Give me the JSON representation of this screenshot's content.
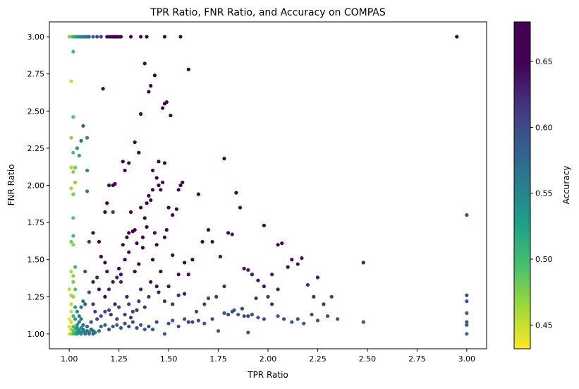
{
  "chart_data": {
    "type": "scatter",
    "title": "TPR Ratio, FNR Ratio, and Accuracy on COMPAS",
    "xlabel": "TPR Ratio",
    "ylabel": "FNR Ratio",
    "xlim": [
      0.9,
      3.1
    ],
    "ylim": [
      0.9,
      3.1
    ],
    "xticks": [
      1.0,
      1.25,
      1.5,
      1.75,
      2.0,
      2.25,
      2.5,
      2.75,
      3.0
    ],
    "xtick_labels": [
      "1.00",
      "1.25",
      "1.50",
      "1.75",
      "2.00",
      "2.25",
      "2.50",
      "2.75",
      "3.00"
    ],
    "yticks": [
      1.0,
      1.25,
      1.5,
      1.75,
      2.0,
      2.25,
      2.5,
      2.75,
      3.0
    ],
    "ytick_labels": [
      "1.00",
      "1.25",
      "1.50",
      "1.75",
      "2.00",
      "2.25",
      "2.50",
      "2.75",
      "3.00"
    ],
    "grid": false,
    "colormap": "viridis_r",
    "colorbar": {
      "label": "Accuracy",
      "range": [
        0.432,
        0.68
      ],
      "ticks": [
        0.45,
        0.5,
        0.55,
        0.6,
        0.65
      ],
      "tick_labels": [
        "0.45",
        "0.50",
        "0.55",
        "0.60",
        "0.65"
      ]
    },
    "points": [
      [
        1.0,
        3.0,
        0.47
      ],
      [
        1.01,
        3.0,
        0.48
      ],
      [
        1.02,
        3.0,
        0.5
      ],
      [
        1.03,
        3.0,
        0.52
      ],
      [
        1.04,
        3.0,
        0.53
      ],
      [
        1.05,
        3.0,
        0.54
      ],
      [
        1.06,
        3.0,
        0.55
      ],
      [
        1.07,
        3.0,
        0.55
      ],
      [
        1.08,
        3.0,
        0.56
      ],
      [
        1.09,
        3.0,
        0.57
      ],
      [
        1.1,
        3.0,
        0.58
      ],
      [
        1.12,
        3.0,
        0.59
      ],
      [
        1.14,
        3.0,
        0.6
      ],
      [
        1.16,
        3.0,
        0.61
      ],
      [
        1.19,
        3.0,
        0.64
      ],
      [
        1.2,
        3.0,
        0.64
      ],
      [
        1.21,
        3.0,
        0.65
      ],
      [
        1.22,
        3.0,
        0.65
      ],
      [
        1.23,
        3.0,
        0.66
      ],
      [
        1.24,
        3.0,
        0.66
      ],
      [
        1.25,
        3.0,
        0.67
      ],
      [
        1.26,
        3.0,
        0.67
      ],
      [
        1.31,
        3.0,
        0.67
      ],
      [
        1.36,
        3.0,
        0.67
      ],
      [
        1.39,
        3.0,
        0.68
      ],
      [
        1.48,
        3.0,
        0.67
      ],
      [
        1.56,
        3.0,
        0.68
      ],
      [
        2.95,
        3.0,
        0.68
      ],
      [
        1.02,
        2.9,
        0.5
      ],
      [
        1.01,
        2.7,
        0.45
      ],
      [
        1.02,
        2.46,
        0.49
      ],
      [
        1.01,
        2.32,
        0.47
      ],
      [
        1.02,
        2.22,
        0.49
      ],
      [
        1.05,
        2.2,
        0.52
      ],
      [
        1.04,
        2.25,
        0.53
      ],
      [
        1.06,
        2.3,
        0.57
      ],
      [
        1.07,
        2.4,
        0.58
      ],
      [
        1.09,
        2.32,
        0.54
      ],
      [
        1.09,
        2.1,
        0.54
      ],
      [
        1.01,
        2.12,
        0.46
      ],
      [
        1.02,
        2.09,
        0.47
      ],
      [
        1.03,
        2.12,
        0.48
      ],
      [
        1.03,
        2.02,
        0.47
      ],
      [
        1.02,
        1.94,
        0.48
      ],
      [
        1.01,
        1.98,
        0.46
      ],
      [
        1.09,
        1.96,
        0.56
      ],
      [
        1.02,
        1.78,
        0.49
      ],
      [
        1.02,
        1.66,
        0.5
      ],
      [
        1.01,
        1.62,
        0.48
      ],
      [
        1.02,
        1.6,
        0.47
      ],
      [
        1.01,
        1.42,
        0.46
      ],
      [
        1.02,
        1.39,
        0.47
      ],
      [
        1.03,
        1.45,
        0.5
      ],
      [
        1.02,
        1.35,
        0.48
      ],
      [
        1.03,
        1.3,
        0.49
      ],
      [
        1.02,
        1.25,
        0.47
      ],
      [
        1.01,
        1.2,
        0.45
      ],
      [
        1.01,
        1.15,
        0.45
      ],
      [
        1.0,
        1.1,
        0.44
      ],
      [
        1.01,
        1.08,
        0.45
      ],
      [
        1.0,
        1.05,
        0.44
      ],
      [
        1.01,
        1.03,
        0.46
      ],
      [
        1.02,
        1.02,
        0.48
      ],
      [
        1.03,
        1.01,
        0.5
      ],
      [
        1.04,
        1.02,
        0.52
      ],
      [
        1.05,
        1.01,
        0.54
      ],
      [
        1.06,
        1.01,
        0.55
      ],
      [
        1.07,
        1.02,
        0.56
      ],
      [
        1.08,
        1.01,
        0.57
      ],
      [
        1.1,
        1.01,
        0.57
      ],
      [
        1.12,
        1.02,
        0.58
      ],
      [
        1.13,
        1.01,
        0.56
      ],
      [
        1.15,
        1.02,
        0.57
      ],
      [
        1.16,
        1.05,
        0.58
      ],
      [
        1.18,
        1.06,
        0.58
      ],
      [
        1.2,
        1.03,
        0.59
      ],
      [
        1.22,
        1.05,
        0.59
      ],
      [
        1.24,
        1.06,
        0.58
      ],
      [
        1.26,
        1.04,
        0.59
      ],
      [
        1.28,
        1.07,
        0.6
      ],
      [
        1.3,
        1.05,
        0.6
      ],
      [
        1.32,
        1.08,
        0.59
      ],
      [
        1.34,
        1.04,
        0.6
      ],
      [
        1.36,
        1.06,
        0.59
      ],
      [
        1.38,
        1.03,
        0.58
      ],
      [
        1.4,
        1.05,
        0.6
      ],
      [
        1.42,
        1.03,
        0.59
      ],
      [
        1.44,
        1.08,
        0.6
      ],
      [
        1.48,
        1.0,
        0.59
      ],
      [
        1.5,
        1.07,
        0.6
      ],
      [
        1.52,
        1.09,
        0.59
      ],
      [
        1.55,
        1.05,
        0.6
      ],
      [
        1.58,
        1.1,
        0.6
      ],
      [
        1.62,
        1.08,
        0.6
      ],
      [
        1.65,
        1.09,
        0.6
      ],
      [
        1.68,
        1.07,
        0.59
      ],
      [
        1.72,
        1.1,
        0.6
      ],
      [
        1.75,
        1.02,
        0.59
      ],
      [
        1.78,
        1.14,
        0.59
      ],
      [
        1.8,
        1.13,
        0.6
      ],
      [
        1.83,
        1.16,
        0.59
      ],
      [
        1.85,
        1.13,
        0.58
      ],
      [
        1.88,
        1.12,
        0.6
      ],
      [
        1.9,
        1.01,
        0.59
      ],
      [
        1.92,
        1.13,
        0.6
      ],
      [
        1.95,
        1.11,
        0.59
      ],
      [
        1.98,
        1.1,
        0.6
      ],
      [
        2.05,
        1.12,
        0.59
      ],
      [
        2.08,
        1.1,
        0.6
      ],
      [
        2.12,
        1.08,
        0.59
      ],
      [
        2.15,
        1.1,
        0.6
      ],
      [
        2.18,
        1.07,
        0.59
      ],
      [
        2.22,
        1.13,
        0.6
      ],
      [
        2.25,
        1.09,
        0.59
      ],
      [
        2.3,
        1.12,
        0.6
      ],
      [
        2.35,
        1.1,
        0.59
      ],
      [
        2.48,
        1.08,
        0.59
      ],
      [
        3.0,
        1.26,
        0.6
      ],
      [
        3.0,
        1.22,
        0.59
      ],
      [
        3.0,
        1.14,
        0.58
      ],
      [
        3.0,
        1.08,
        0.59
      ],
      [
        3.0,
        1.06,
        0.59
      ],
      [
        3.0,
        1.0,
        0.57
      ],
      [
        3.0,
        1.8,
        0.6
      ],
      [
        2.48,
        1.48,
        0.63
      ],
      [
        1.05,
        1.12,
        0.56
      ],
      [
        1.06,
        1.18,
        0.57
      ],
      [
        1.07,
        1.22,
        0.56
      ],
      [
        1.08,
        1.2,
        0.58
      ],
      [
        1.04,
        1.15,
        0.55
      ],
      [
        1.05,
        1.08,
        0.55
      ],
      [
        1.06,
        1.1,
        0.57
      ],
      [
        1.07,
        1.06,
        0.57
      ],
      [
        1.03,
        1.1,
        0.53
      ],
      [
        1.04,
        1.06,
        0.54
      ],
      [
        1.08,
        1.42,
        0.59
      ],
      [
        1.1,
        1.28,
        0.6
      ],
      [
        1.12,
        1.35,
        0.64
      ],
      [
        1.15,
        1.3,
        0.64
      ],
      [
        1.18,
        1.25,
        0.65
      ],
      [
        1.1,
        1.62,
        0.62
      ],
      [
        1.17,
        2.65,
        0.67
      ],
      [
        1.18,
        1.82,
        0.66
      ],
      [
        1.19,
        1.88,
        0.67
      ],
      [
        1.2,
        2.0,
        0.64
      ],
      [
        1.22,
        2.0,
        0.65
      ],
      [
        1.22,
        1.82,
        0.62
      ],
      [
        1.23,
        2.01,
        0.66
      ],
      [
        1.27,
        2.16,
        0.67
      ],
      [
        1.29,
        1.65,
        0.67
      ],
      [
        1.3,
        1.68,
        0.66
      ],
      [
        1.32,
        1.69,
        0.67
      ],
      [
        1.33,
        2.29,
        0.66
      ],
      [
        1.35,
        2.22,
        0.66
      ],
      [
        1.36,
        2.48,
        0.65
      ],
      [
        1.38,
        2.82,
        0.67
      ],
      [
        1.4,
        2.63,
        0.67
      ],
      [
        1.41,
        2.67,
        0.67
      ],
      [
        1.43,
        2.74,
        0.66
      ],
      [
        1.45,
        2.16,
        0.66
      ],
      [
        1.47,
        2.52,
        0.67
      ],
      [
        1.48,
        2.55,
        0.68
      ],
      [
        1.49,
        2.56,
        0.67
      ],
      [
        1.51,
        2.47,
        0.68
      ],
      [
        1.48,
        2.15,
        0.67
      ],
      [
        1.44,
        2.05,
        0.68
      ],
      [
        1.42,
        1.97,
        0.67
      ],
      [
        1.4,
        1.93,
        0.66
      ],
      [
        1.38,
        1.78,
        0.67
      ],
      [
        1.36,
        1.85,
        0.66
      ],
      [
        1.33,
        1.7,
        0.65
      ],
      [
        1.3,
        1.55,
        0.66
      ],
      [
        1.28,
        1.5,
        0.65
      ],
      [
        1.26,
        1.4,
        0.64
      ],
      [
        1.24,
        1.38,
        0.63
      ],
      [
        1.22,
        1.35,
        0.64
      ],
      [
        1.2,
        1.3,
        0.62
      ],
      [
        1.18,
        1.48,
        0.65
      ],
      [
        1.16,
        1.52,
        0.66
      ],
      [
        1.14,
        1.38,
        0.63
      ],
      [
        1.12,
        1.2,
        0.62
      ],
      [
        1.13,
        1.15,
        0.61
      ],
      [
        1.16,
        1.12,
        0.6
      ],
      [
        1.18,
        1.15,
        0.61
      ],
      [
        1.2,
        1.16,
        0.6
      ],
      [
        1.25,
        1.18,
        0.61
      ],
      [
        1.3,
        1.2,
        0.61
      ],
      [
        1.35,
        1.22,
        0.62
      ],
      [
        1.4,
        1.25,
        0.62
      ],
      [
        1.45,
        1.28,
        0.63
      ],
      [
        1.5,
        1.32,
        0.64
      ],
      [
        1.55,
        1.26,
        0.62
      ],
      [
        1.6,
        1.4,
        0.64
      ],
      [
        1.62,
        1.5,
        0.66
      ],
      [
        1.65,
        1.94,
        0.67
      ],
      [
        1.67,
        1.62,
        0.65
      ],
      [
        1.7,
        1.7,
        0.65
      ],
      [
        1.72,
        1.62,
        0.64
      ],
      [
        1.76,
        1.52,
        0.64
      ],
      [
        1.78,
        2.18,
        0.67
      ],
      [
        1.8,
        1.68,
        0.65
      ],
      [
        1.82,
        1.67,
        0.64
      ],
      [
        1.84,
        1.95,
        0.66
      ],
      [
        1.86,
        1.85,
        0.66
      ],
      [
        1.88,
        1.44,
        0.64
      ],
      [
        1.9,
        1.43,
        0.63
      ],
      [
        1.92,
        1.4,
        0.63
      ],
      [
        1.95,
        1.36,
        0.64
      ],
      [
        1.98,
        1.73,
        0.66
      ],
      [
        2.0,
        1.25,
        0.62
      ],
      [
        2.02,
        1.4,
        0.63
      ],
      [
        2.05,
        1.6,
        0.65
      ],
      [
        2.07,
        1.61,
        0.65
      ],
      [
        2.1,
        1.45,
        0.64
      ],
      [
        2.12,
        1.5,
        0.64
      ],
      [
        2.15,
        1.47,
        0.64
      ],
      [
        2.17,
        1.51,
        0.64
      ],
      [
        2.2,
        1.33,
        0.62
      ],
      [
        2.23,
        1.25,
        0.62
      ],
      [
        2.25,
        1.38,
        0.63
      ],
      [
        2.28,
        1.2,
        0.62
      ],
      [
        2.32,
        1.25,
        0.61
      ],
      [
        2.05,
        1.3,
        0.63
      ],
      [
        2.02,
        1.2,
        0.62
      ],
      [
        1.98,
        1.32,
        0.64
      ],
      [
        1.94,
        1.24,
        0.62
      ],
      [
        1.9,
        1.12,
        0.61
      ],
      [
        1.87,
        1.17,
        0.61
      ],
      [
        1.82,
        1.15,
        0.6
      ],
      [
        1.78,
        1.32,
        0.62
      ],
      [
        1.74,
        1.25,
        0.62
      ],
      [
        1.7,
        1.24,
        0.61
      ],
      [
        1.68,
        1.2,
        0.61
      ],
      [
        1.64,
        1.15,
        0.61
      ],
      [
        1.6,
        1.08,
        0.61
      ],
      [
        1.58,
        1.27,
        0.63
      ],
      [
        1.55,
        1.97,
        0.66
      ],
      [
        1.56,
        2.0,
        0.67
      ],
      [
        1.57,
        2.02,
        0.67
      ],
      [
        1.54,
        1.84,
        0.66
      ],
      [
        1.52,
        1.8,
        0.67
      ],
      [
        1.5,
        1.85,
        0.66
      ],
      [
        1.49,
        1.7,
        0.66
      ],
      [
        1.47,
        2.02,
        0.67
      ],
      [
        1.46,
        1.97,
        0.66
      ],
      [
        1.44,
        1.6,
        0.65
      ],
      [
        1.43,
        1.68,
        0.66
      ],
      [
        1.42,
        1.5,
        0.65
      ],
      [
        1.41,
        1.35,
        0.64
      ],
      [
        1.39,
        1.72,
        0.65
      ],
      [
        1.37,
        1.58,
        0.66
      ],
      [
        1.35,
        1.47,
        0.66
      ],
      [
        1.33,
        1.42,
        0.66
      ],
      [
        1.32,
        1.15,
        0.61
      ],
      [
        1.31,
        1.11,
        0.62
      ],
      [
        1.29,
        1.25,
        0.63
      ],
      [
        1.27,
        1.6,
        0.67
      ],
      [
        1.25,
        1.44,
        0.66
      ],
      [
        1.23,
        1.2,
        0.63
      ],
      [
        1.21,
        1.13,
        0.62
      ],
      [
        1.19,
        1.42,
        0.64
      ],
      [
        1.15,
        1.62,
        0.66
      ],
      [
        1.12,
        1.68,
        0.65
      ],
      [
        1.45,
        2.0,
        0.68
      ],
      [
        1.42,
        2.1,
        0.67
      ],
      [
        1.41,
        1.9,
        0.67
      ],
      [
        1.39,
        1.88,
        0.66
      ],
      [
        1.37,
        1.65,
        0.65
      ],
      [
        1.34,
        1.61,
        0.66
      ],
      [
        1.3,
        2.15,
        0.67
      ],
      [
        1.28,
        2.1,
        0.67
      ],
      [
        1.31,
        1.82,
        0.65
      ],
      [
        1.26,
        1.35,
        0.63
      ],
      [
        1.48,
        1.65,
        0.66
      ],
      [
        1.52,
        1.53,
        0.65
      ],
      [
        1.55,
        1.4,
        0.64
      ],
      [
        1.58,
        1.48,
        0.65
      ],
      [
        1.6,
        2.78,
        0.67
      ],
      [
        1.46,
        1.42,
        0.65
      ],
      [
        1.44,
        1.32,
        0.64
      ],
      [
        1.48,
        1.22,
        0.62
      ],
      [
        1.52,
        1.2,
        0.62
      ],
      [
        1.36,
        1.3,
        0.63
      ],
      [
        1.38,
        1.18,
        0.62
      ],
      [
        1.34,
        1.16,
        0.62
      ],
      [
        1.28,
        1.13,
        0.61
      ],
      [
        1.24,
        1.1,
        0.61
      ],
      [
        1.09,
        1.05,
        0.58
      ],
      [
        1.11,
        1.08,
        0.59
      ],
      [
        1.14,
        1.1,
        0.6
      ],
      [
        1.03,
        1.18,
        0.52
      ],
      [
        1.02,
        1.12,
        0.5
      ],
      [
        1.01,
        1.26,
        0.46
      ],
      [
        1.0,
        1.3,
        0.45
      ],
      [
        1.02,
        1.05,
        0.49
      ],
      [
        1.03,
        1.04,
        0.51
      ],
      [
        1.0,
        1.0,
        0.44
      ],
      [
        1.01,
        1.0,
        0.46
      ],
      [
        1.02,
        1.0,
        0.49
      ],
      [
        1.03,
        1.0,
        0.51
      ],
      [
        1.04,
        1.0,
        0.53
      ],
      [
        1.06,
        1.0,
        0.55
      ],
      [
        1.08,
        1.0,
        0.56
      ],
      [
        1.1,
        1.0,
        0.57
      ],
      [
        1.12,
        1.0,
        0.58
      ],
      [
        1.06,
        1.04,
        0.55
      ],
      [
        1.05,
        1.03,
        0.54
      ],
      [
        1.07,
        1.03,
        0.56
      ],
      [
        1.04,
        1.04,
        0.53
      ],
      [
        1.09,
        1.02,
        0.57
      ],
      [
        1.11,
        1.03,
        0.58
      ]
    ]
  }
}
